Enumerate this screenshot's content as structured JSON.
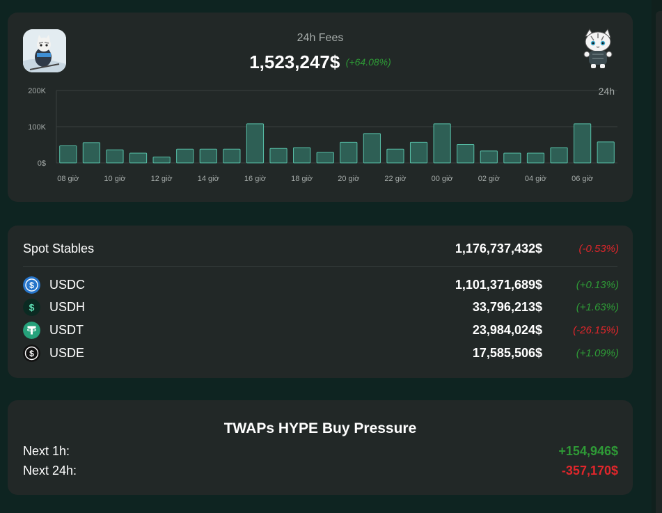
{
  "fees": {
    "title": "24h Fees",
    "value": "1,523,247$",
    "change": "(+64.08%)",
    "avatar_left": "cat-skier-avatar",
    "avatar_right": "cat-mascot-avatar"
  },
  "chart_data": {
    "type": "bar",
    "title": "24h Fees",
    "period_label": "24h",
    "y_ticks": [
      "200K",
      "100K",
      "0$"
    ],
    "ylim": [
      0,
      200000
    ],
    "x_tick_labels": [
      "08 giờ",
      "10 giờ",
      "12 giờ",
      "14 giờ",
      "16 giờ",
      "18 giờ",
      "20 giờ",
      "22 giờ",
      "00 giờ",
      "02 giờ",
      "04 giờ",
      "06 giờ"
    ],
    "values": [
      47000,
      56000,
      36000,
      27000,
      16000,
      38000,
      38000,
      38000,
      108000,
      40000,
      42000,
      29000,
      57000,
      81000,
      38000,
      57000,
      108000,
      51000,
      33000,
      27000,
      27000,
      42000,
      108000,
      58000
    ],
    "colors": {
      "bar_fill": "#2e5f55",
      "bar_stroke": "#58c0a8",
      "grid": "#3a403f",
      "tick": "#a7adab"
    }
  },
  "stables": {
    "header": {
      "label": "Spot Stables",
      "value": "1,176,737,432$",
      "change": "(-0.53%)"
    },
    "items": [
      {
        "name": "USDC",
        "value": "1,101,371,689$",
        "change": "(+0.13%)",
        "icon": "usdc-icon"
      },
      {
        "name": "USDH",
        "value": "33,796,213$",
        "change": "(+1.63%)",
        "icon": "usdh-icon"
      },
      {
        "name": "USDT",
        "value": "23,984,024$",
        "change": "(-26.15%)",
        "icon": "usdt-icon"
      },
      {
        "name": "USDE",
        "value": "17,585,506$",
        "change": "(+1.09%)",
        "icon": "usde-icon"
      }
    ]
  },
  "twap": {
    "title": "TWAPs HYPE Buy Pressure",
    "rows": [
      {
        "label": "Next 1h:",
        "value": "+154,946$"
      },
      {
        "label": "Next 24h:",
        "value": "-357,170$"
      }
    ]
  },
  "colors": {
    "positive": "#2e9a36",
    "negative": "#e0262b",
    "card": "#222827",
    "background": "#0e2421"
  }
}
